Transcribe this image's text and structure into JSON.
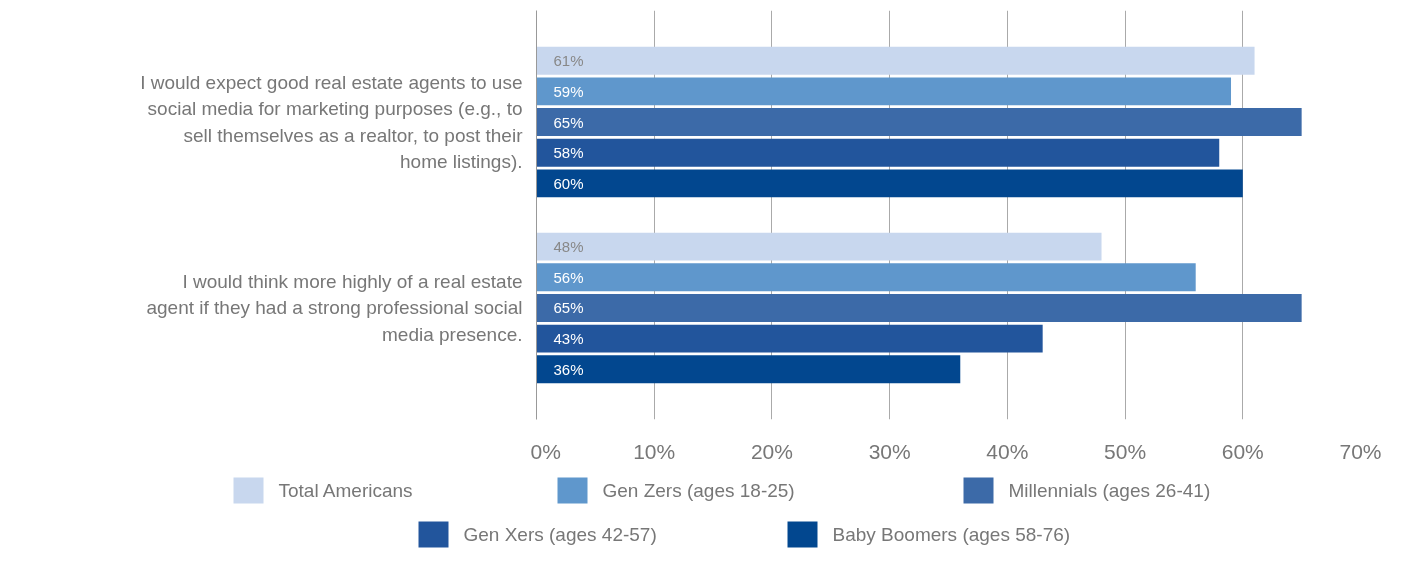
{
  "chart_data": {
    "type": "bar",
    "orientation": "horizontal",
    "categories": [
      "I would expect good real estate agents to use social media for marketing purposes (e.g., to sell themselves as a realtor, to post their home listings).",
      "I would think more highly of a real estate agent if they had a strong professional social media presence."
    ],
    "series": [
      {
        "name": "Total Americans",
        "color": "#c8d7ee",
        "values": [
          61,
          48
        ],
        "value_labels": [
          "61%",
          "48%"
        ]
      },
      {
        "name": "Gen Zers (ages 18-25)",
        "color": "#5f97cc",
        "values": [
          59,
          56
        ],
        "value_labels": [
          "59%",
          "56%"
        ]
      },
      {
        "name": "Millennials (ages 26-41)",
        "color": "#3c6aa8",
        "values": [
          65,
          65
        ],
        "value_labels": [
          "65%",
          "65%"
        ]
      },
      {
        "name": "Gen Xers (ages 42-57)",
        "color": "#22559c",
        "values": [
          58,
          43
        ],
        "value_labels": [
          "58%",
          "43%"
        ]
      },
      {
        "name": "Baby Boomers (ages 58-76)",
        "color": "#02478f",
        "values": [
          60,
          36
        ],
        "value_labels": [
          "60%",
          "36%"
        ]
      }
    ],
    "xlim": [
      0,
      70
    ],
    "xticks": [
      {
        "value": 0,
        "label": "0%"
      },
      {
        "value": 10,
        "label": "10%"
      },
      {
        "value": 20,
        "label": "20%"
      },
      {
        "value": 30,
        "label": "30%"
      },
      {
        "value": 40,
        "label": "40%"
      },
      {
        "value": 50,
        "label": "50%"
      },
      {
        "value": 60,
        "label": "60%"
      },
      {
        "value": 70,
        "label": "70%"
      }
    ],
    "grid": "x",
    "legend": "bottom"
  }
}
